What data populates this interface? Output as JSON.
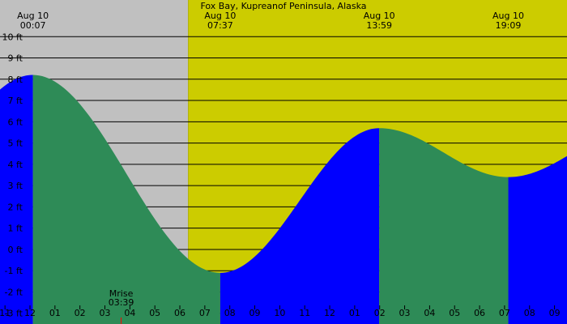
{
  "chart_data": {
    "type": "area",
    "title": "Fox Bay, Kupreanof Peninsula, Alaska",
    "y_unit": "ft",
    "y_ticks": [
      "10 ft",
      "9 ft",
      "8 ft",
      "7 ft",
      "6 ft",
      "5 ft",
      "4 ft",
      "3 ft",
      "2 ft",
      "1 ft",
      "0 ft",
      "-1 ft",
      "-2 ft",
      "-3 ft"
    ],
    "y_tick_values": [
      10,
      9,
      8,
      7,
      6,
      5,
      4,
      3,
      2,
      1,
      0,
      -1,
      -2,
      -3
    ],
    "ylim": [
      -3.2,
      10.2
    ],
    "x_hour_range": [
      -1.2,
      21.5
    ],
    "x_tick_labels": [
      "11",
      "12",
      "01",
      "02",
      "03",
      "04",
      "05",
      "06",
      "07",
      "08",
      "09",
      "10",
      "11",
      "12",
      "01",
      "02",
      "03",
      "04",
      "05",
      "06",
      "07",
      "08",
      "09"
    ],
    "daylight": {
      "sunrise_hour": 6.33
    },
    "tide_events": [
      {
        "date": "Aug 10",
        "time": "00:07",
        "height_ft": 8.2,
        "type": "high"
      },
      {
        "date": "Aug 10",
        "time": "07:37",
        "height_ft": -1.1,
        "type": "low"
      },
      {
        "date": "Aug 10",
        "time": "13:59",
        "height_ft": 5.7,
        "type": "high"
      },
      {
        "date": "Aug 10",
        "time": "19:09",
        "height_ft": 3.4,
        "type": "low"
      }
    ],
    "moonrise": {
      "label": "Mrise",
      "time": "03:39"
    },
    "colors": {
      "night": "#c0c0c0",
      "day": "#cccc00",
      "tide_falling": "#2e8b57",
      "tide_rising": "#0000ff",
      "grid": "#000000",
      "moonrise_tick": "#ff0000"
    }
  }
}
